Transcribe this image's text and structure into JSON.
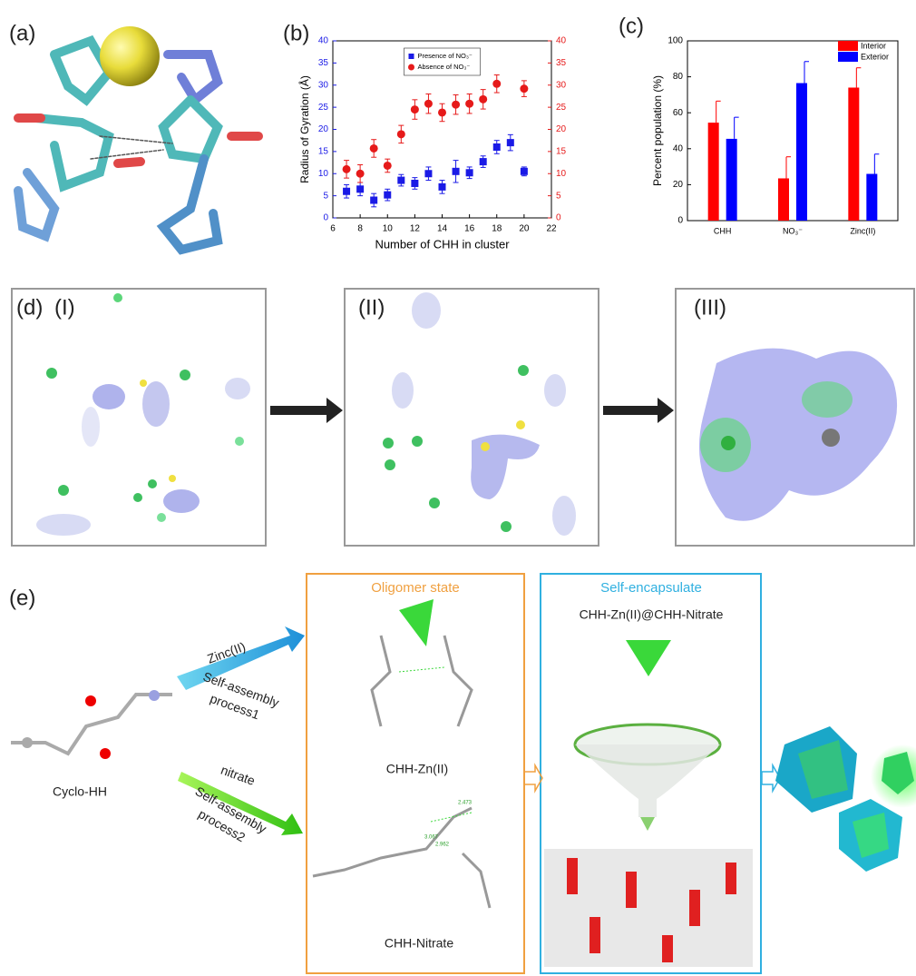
{
  "panels": {
    "a": "(a)",
    "b": "(b)",
    "c": "(c)",
    "d": "(d)",
    "e": "(e)"
  },
  "chart_data": [
    {
      "type": "scatter",
      "xlabel": "Number of CHH in cluster",
      "ylabel": "Radius of Gyration (Å)",
      "x": [
        7,
        8,
        9,
        10,
        11,
        12,
        13,
        14,
        15,
        16,
        17,
        18,
        19,
        20
      ],
      "xlim": [
        6,
        22
      ],
      "xticks": [
        6,
        8,
        10,
        12,
        14,
        16,
        18,
        20,
        22
      ],
      "ylim": [
        0,
        40
      ],
      "yticks": [
        0,
        5,
        10,
        15,
        20,
        25,
        30,
        35,
        40
      ],
      "y2lim": [
        0,
        40
      ],
      "y2ticks": [
        0,
        5,
        10,
        15,
        20,
        25,
        30,
        35,
        40
      ],
      "legend": "upper center",
      "series": [
        {
          "name": "Presence of NO₃⁻",
          "color": "#1a1ae6",
          "marker": "square",
          "values": [
            6,
            6.5,
            4,
            5.2,
            8.5,
            7.8,
            10,
            7,
            10.5,
            10.2,
            12.7,
            16,
            17,
            10.5
          ],
          "errors": [
            1.5,
            1.5,
            1.5,
            1.3,
            1.3,
            1.3,
            1.5,
            1.5,
            2.5,
            1.3,
            1.3,
            1.5,
            1.8,
            1
          ]
        },
        {
          "name": "Absence of NO₃⁻",
          "color": "#e61a1a",
          "marker": "circle",
          "axis": "y2",
          "values": [
            11,
            10,
            15.7,
            11.8,
            18.9,
            24.5,
            25.8,
            23.8,
            25.6,
            25.8,
            26.8,
            30.3,
            null,
            29.2
          ],
          "errors": [
            2,
            2,
            2,
            1.5,
            2,
            2.2,
            2.2,
            2,
            2.2,
            2.2,
            2.2,
            2,
            null,
            1.8
          ]
        }
      ]
    },
    {
      "type": "bar",
      "ylabel": "Percent population (%)",
      "categories": [
        "CHH",
        "NO₃⁻",
        "Zinc(II)"
      ],
      "ylim": [
        0,
        100
      ],
      "yticks": [
        0,
        20,
        40,
        60,
        80,
        100
      ],
      "legend": "upper right",
      "series": [
        {
          "name": "Interior",
          "color": "#ff0000",
          "values": [
            54.5,
            23.5,
            74
          ],
          "errors": [
            12,
            12,
            11
          ]
        },
        {
          "name": "Exterior",
          "color": "#0000ff",
          "values": [
            45.5,
            76.5,
            26
          ],
          "errors": [
            12,
            12,
            11
          ]
        }
      ]
    }
  ],
  "panel_d": {
    "steps": [
      "(I)",
      "(II)",
      "(III)"
    ]
  },
  "panel_e": {
    "zinc": "Zinc(II)",
    "process1": [
      "Self-assembly",
      "process1"
    ],
    "nitrate": "nitrate",
    "process2": [
      "Self-assembly",
      "process2"
    ],
    "cyclo": "Cyclo-HH",
    "oligomer_title": "Oligomer state",
    "zn_label": "CHH-Zn(II)",
    "nitrate_label": "CHH-Nitrate",
    "distances": [
      "2.473",
      "3.067",
      "2.962"
    ],
    "encap_title": "Self-encapsulate",
    "encap_label": "CHH-Zn(II)@CHH-Nitrate"
  }
}
